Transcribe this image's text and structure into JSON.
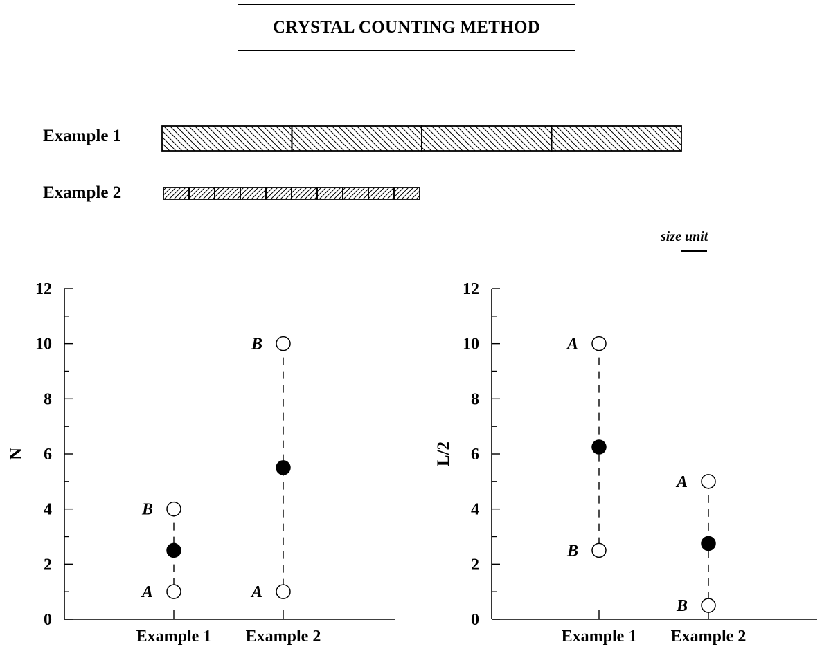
{
  "header": {
    "title": "CRYSTAL COUNTING METHOD"
  },
  "crystals": {
    "example1": {
      "label": "Example 1",
      "count": 4
    },
    "example2": {
      "label": "Example 2",
      "count": 10
    },
    "size_unit_label": "size unit"
  },
  "chart_data": [
    {
      "type": "scatter",
      "ylabel": "N",
      "xlabel": "",
      "ylim": [
        0,
        12
      ],
      "yticks": [
        0,
        2,
        4,
        6,
        8,
        10,
        12
      ],
      "categories": [
        "Example 1",
        "Example 2"
      ],
      "points": [
        {
          "category": "Example 1",
          "label": "A",
          "y": 1,
          "filled": false
        },
        {
          "category": "Example 1",
          "label": "B",
          "y": 4,
          "filled": false
        },
        {
          "category": "Example 1",
          "label": "",
          "y": 2.5,
          "filled": true
        },
        {
          "category": "Example 2",
          "label": "A",
          "y": 1,
          "filled": false
        },
        {
          "category": "Example 2",
          "label": "B",
          "y": 10,
          "filled": false
        },
        {
          "category": "Example 2",
          "label": "",
          "y": 5.5,
          "filled": true
        }
      ]
    },
    {
      "type": "scatter",
      "ylabel": "L/2",
      "xlabel": "",
      "ylim": [
        0,
        12
      ],
      "yticks": [
        0,
        2,
        4,
        6,
        8,
        10,
        12
      ],
      "categories": [
        "Example 1",
        "Example 2"
      ],
      "points": [
        {
          "category": "Example 1",
          "label": "A",
          "y": 10,
          "filled": false
        },
        {
          "category": "Example 1",
          "label": "B",
          "y": 2.5,
          "filled": false
        },
        {
          "category": "Example 1",
          "label": "",
          "y": 6.25,
          "filled": true
        },
        {
          "category": "Example 2",
          "label": "A",
          "y": 5,
          "filled": false
        },
        {
          "category": "Example 2",
          "label": "B",
          "y": 0.5,
          "filled": false
        },
        {
          "category": "Example 2",
          "label": "",
          "y": 2.75,
          "filled": true
        }
      ]
    }
  ]
}
